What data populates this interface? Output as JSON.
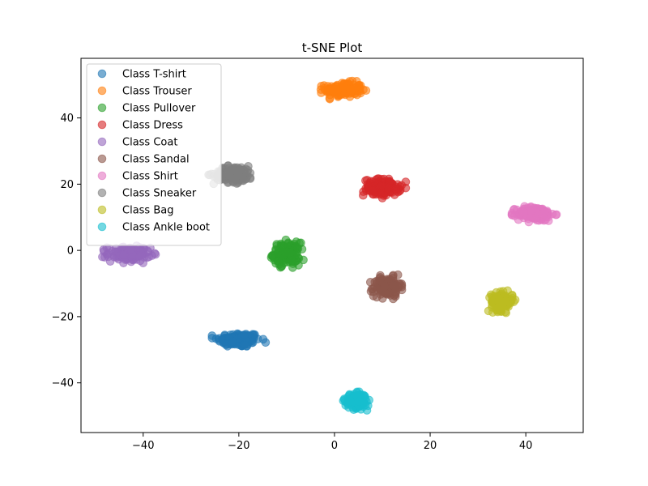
{
  "chart_data": {
    "type": "scatter",
    "title": "t-SNE Plot",
    "xlabel": "",
    "ylabel": "",
    "xlim": [
      -53,
      52
    ],
    "ylim": [
      -55,
      58
    ],
    "xticks": [
      -40,
      -20,
      0,
      20,
      40
    ],
    "yticks": [
      -40,
      -20,
      0,
      20,
      40
    ],
    "grid": false,
    "legend_position": "top-left",
    "series": [
      {
        "name": "Class T-shirt",
        "color": "#1f77b4",
        "center": [
          -20,
          -27
        ],
        "spread": [
          4.0,
          2.0
        ],
        "count": 150
      },
      {
        "name": "Class Trouser",
        "color": "#ff7f0e",
        "center": [
          2,
          48.5
        ],
        "spread": [
          3.5,
          2.0
        ],
        "count": 150
      },
      {
        "name": "Class Pullover",
        "color": "#2ca02c",
        "center": [
          -10,
          -1
        ],
        "spread": [
          2.5,
          3.0
        ],
        "count": 150
      },
      {
        "name": "Class Dress",
        "color": "#d62728",
        "center": [
          10,
          19
        ],
        "spread": [
          3.5,
          2.3
        ],
        "count": 150
      },
      {
        "name": "Class Coat",
        "color": "#9467bd",
        "center": [
          -43,
          -1
        ],
        "spread": [
          4.0,
          2.0
        ],
        "count": 150
      },
      {
        "name": "Class Sandal",
        "color": "#8c564b",
        "center": [
          11,
          -11
        ],
        "spread": [
          2.5,
          2.6
        ],
        "count": 150
      },
      {
        "name": "Class Shirt",
        "color": "#e377c2",
        "center": [
          42,
          11
        ],
        "spread": [
          3.5,
          2.0
        ],
        "count": 150
      },
      {
        "name": "Class Sneaker",
        "color": "#7f7f7f",
        "center": [
          -21,
          23
        ],
        "spread": [
          3.8,
          2.2
        ],
        "count": 150
      },
      {
        "name": "Class Bag",
        "color": "#bcbd22",
        "center": [
          35,
          -15.5
        ],
        "spread": [
          2.0,
          2.4
        ],
        "count": 150
      },
      {
        "name": "Class Ankle boot",
        "color": "#17becf",
        "center": [
          4.5,
          -45.5
        ],
        "spread": [
          2.0,
          2.0
        ],
        "count": 150
      }
    ]
  }
}
